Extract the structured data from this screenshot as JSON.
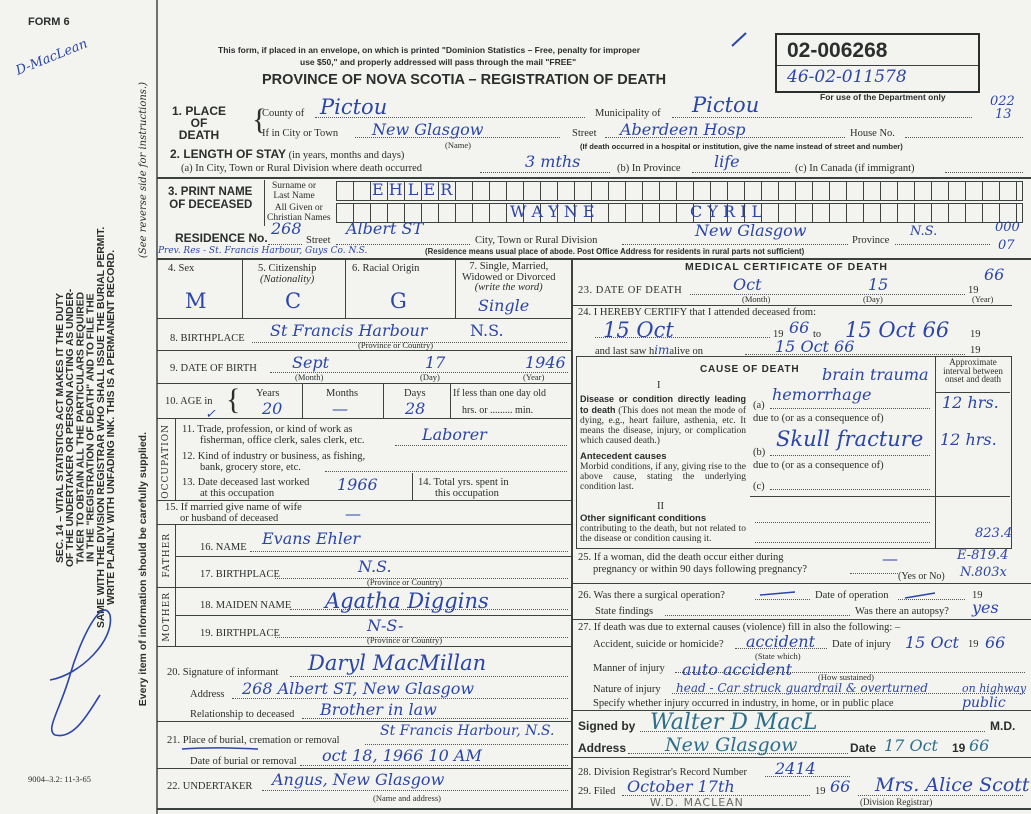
{
  "margin": {
    "form_number": "FORM 6",
    "handwritten_note": "D-MacLean",
    "legal_notice_lines": [
      "SEC. 14 – VITAL STATISTICS ACT MAKES IT THE DUTY",
      "OF THE UNDERTAKER OR PERSON ACTING AS UNDER-",
      "TAKER TO OBTAIN ALL THE PARTICULARS REQUIRED",
      "IN THE \"REGISTRATION OF DEATH\" AND TO FILE THE",
      "SAME WITH THE DIVISION REGISTRAR WHO SHALL ISSUE THE BURIAL PERMIT.",
      "WRITE PLAINLY WITH UNFADING INK. THIS IS A PERMANENT RECORD."
    ],
    "every_item": "Every item of information should be carefully supplied.",
    "see_reverse": "(See reverse side for instructions.)",
    "print_code": "9004–3.2: 11-3-65"
  },
  "header": {
    "notice_line1": "This form, if placed in an envelope, on which is printed \"Dominion Statistics – Free, penalty for improper",
    "notice_line2": "use $50,\" and properly addressed will pass through the mail \"FREE\"",
    "title": "PROVINCE OF NOVA SCOTIA – REGISTRATION OF DEATH"
  },
  "registration": {
    "number": "02-006268",
    "handwritten_number": "46-02-011578",
    "dept_note": "For use of the Department only",
    "code_top": "022",
    "code_bottom": "13"
  },
  "place_of_death": {
    "label_1": "1. PLACE",
    "label_2": "OF",
    "label_3": "DEATH",
    "county_label": "County of",
    "county": "Pictou",
    "municipality_label": "Municipality of",
    "municipality": "Pictou",
    "city_label": "If in City or Town",
    "city": "New Glasgow",
    "name_note": "(Name)",
    "street_label": "Street",
    "street": "Aberdeen Hosp",
    "house_label": "House No.",
    "hospital_note": "(If death occurred in a hospital or institution, give the name instead of street and number)"
  },
  "length_of_stay": {
    "label": "2. LENGTH OF STAY",
    "label_note": "(in years, months and days)",
    "a_label": "(a) In City, Town or Rural Division where death occurred",
    "a_value": "3 mths",
    "b_label": "(b) In Province",
    "b_value": "life",
    "c_label": "(c) In Canada (if immigrant)"
  },
  "name": {
    "label_1": "3. PRINT NAME",
    "label_2": "OF DECEASED",
    "surname_label_1": "Surname or",
    "surname_label_2": "Last Name",
    "surname": "E H L E R",
    "given_label_1": "All Given or",
    "given_label_2": "Christian Names",
    "given_1": "W A Y N E",
    "given_2": "C Y R I L"
  },
  "residence": {
    "label": "RESIDENCE No.",
    "number": "268",
    "street_label": "Street",
    "street": "Albert ST",
    "city_label": "City, Town or Rural Division",
    "city": "New Glasgow",
    "province_label": "Province",
    "province": "N.S.",
    "code_top": "000",
    "code_bottom": "07",
    "previous": "Prev. Res - St. Francis Harbour, Guys Co. N.S.",
    "note": "(Residence means usual place of abode. Post Office Address for residents in rural parts not sufficient)"
  },
  "personal": {
    "sex_label": "4. Sex",
    "sex": "M",
    "citizenship_label": "5. Citizenship",
    "citizenship_note": "(Nationality)",
    "citizenship": "C",
    "racial_label": "6. Racial Origin",
    "racial": "G",
    "marital_label_1": "7. Single, Married,",
    "marital_label_2": "Widowed or Divorced",
    "marital_label_3": "(write the word)",
    "marital": "Single",
    "birthplace_label": "8. BIRTHPLACE",
    "birthplace": "St Francis Harbour",
    "birthplace_prov": "N.S.",
    "prov_note": "(Province or Country)",
    "dob_label": "9. DATE OF BIRTH",
    "dob_month": "Sept",
    "dob_day": "17",
    "dob_year": "1946",
    "month_note": "(Month)",
    "day_note": "(Day)",
    "year_note": "(Year)",
    "age_label": "10. AGE in",
    "age_check": "✓",
    "years_label": "Years",
    "years": "20",
    "months_label": "Months",
    "months": "—",
    "days_label": "Days",
    "days": "28",
    "less_label": "If less than one day old",
    "hrs_label": "hrs. or ......... min."
  },
  "occupation": {
    "side_label": "OCCUPATION",
    "q11_1": "11. Trade, profession, or kind of work as",
    "q11_2": "fisherman, office clerk, sales clerk, etc.",
    "trade": "Laborer",
    "q12_1": "12. Kind of industry or business, as fishing,",
    "q12_2": "bank, grocery store, etc.",
    "q13_1": "13. Date deceased last worked",
    "q13_2": "at this occupation",
    "last_worked": "1966",
    "q14_1": "14. Total yrs. spent in",
    "q14_2": "this occupation"
  },
  "spouse": {
    "q15_1": "15. If married give name of wife",
    "q15_2": "or husband of deceased",
    "value": "—"
  },
  "father": {
    "side_label": "FATHER",
    "name_label": "16. NAME",
    "name": "Evans Ehler",
    "birthplace_label": "17. BIRTHPLACE",
    "birthplace": "N.S.",
    "prov_note": "(Province or Country)"
  },
  "mother": {
    "side_label": "MOTHER",
    "name_label": "18. MAIDEN NAME",
    "name": "Agatha Diggins",
    "birthplace_label": "19. BIRTHPLACE",
    "birthplace": "N-S-",
    "prov_note": "(Province or Country)"
  },
  "informant": {
    "signature_label": "20. Signature of informant",
    "signature": "Daryl MacMillan",
    "address_label": "Address",
    "address": "268 Albert ST, New Glasgow",
    "relationship_label": "Relationship to deceased",
    "relationship": "Brother in law"
  },
  "burial": {
    "place_label": "21. Place of burial, cremation or removal",
    "place": "St Francis Harbour, N.S.",
    "date_label": "Date of burial or removal",
    "date": "oct 18, 1966 10 AM"
  },
  "undertaker": {
    "label": "22. UNDERTAKER",
    "value": "Angus, New Glasgow",
    "note": "(Name and address)"
  },
  "medical": {
    "title": "MEDICAL CERTIFICATE OF DEATH",
    "q23_label": "23. DATE OF DEATH",
    "death_month": "Oct",
    "death_day": "15",
    "century": "19",
    "death_year": "66",
    "month_note": "(Month)",
    "day_note": "(Day)",
    "year_note": "(Year)",
    "q24_label": "24. I HEREBY CERTIFY that I attended deceased from:",
    "attended_from": "15 Oct",
    "from_year": "66",
    "to_label": "to",
    "attended_to": "15 Oct 66",
    "last_saw_label_1": "and last saw h",
    "last_saw_pronoun": "im",
    "last_saw_label_2": "alive on",
    "last_saw": "15 Oct 66"
  },
  "cause": {
    "title": "CAUSE OF DEATH",
    "part1": "I",
    "part2": "II",
    "interval_header": "Approximate interval between onset and death",
    "direct_title": "Disease or condition directly leading to death",
    "direct_text": "(This does not mean the mode of dying, e.g., heart failure, asthenia, etc. It means the disease, injury, or complication which caused death.)",
    "antecedent_title": "Antecedent causes",
    "antecedent_text": "Morbid conditions, if any, giving rise to the above cause, stating the underlying condition last.",
    "other_title": "Other significant conditions",
    "other_text": "contributing to the death, but not related to the disease or condition causing it.",
    "a_label": "(a)",
    "b_label": "(b)",
    "c_label": "(c)",
    "due_to": "due to (or as a consequence of)",
    "a_line1": "brain trauma",
    "a_line2": "hemorrhage",
    "a_interval": "12 hrs.",
    "b_value": "Skull fracture",
    "b_interval": "12 hrs.",
    "code": "823.4"
  },
  "q25": {
    "label_1": "25. If a woman, did the death occur either during",
    "label_2": "pregnancy or within 90 days following pregnancy?",
    "value": "—",
    "yes_no": "(Yes or No)",
    "code_1": "E-819.4",
    "code_2": "N.803x"
  },
  "q26": {
    "label": "26. Was there a surgical operation?",
    "date_label": "Date of operation",
    "century": "19",
    "findings_label": "State findings",
    "autopsy_label": "Was there an autopsy?",
    "autopsy": "yes"
  },
  "q27": {
    "label": "27. If death was due to external causes (violence) fill in also the following: –",
    "accident_label": "Accident, suicide or homicide?",
    "accident": "accident",
    "state_which": "(State which)",
    "date_label": "Date of injury",
    "date": "15 Oct",
    "century": "19",
    "year": "66",
    "manner_label": "Manner of injury",
    "manner": "auto accident",
    "how": "(How sustained)",
    "nature_label": "Nature of injury",
    "nature": "head - Car struck guardrail & overturned",
    "nature_2": "on highway",
    "place_label": "Specify whether injury occurred in industry, in home, or in public place",
    "place": "public"
  },
  "signature": {
    "signed_label": "Signed by",
    "signed": "Walter D MacL",
    "md": "M.D.",
    "address_label": "Address",
    "address": "New Glasgow",
    "date_label": "Date",
    "date": "17 Oct",
    "century": "19",
    "year": "66"
  },
  "registrar": {
    "q28_label": "28. Division Registrar's Record Number",
    "record_number": "2414",
    "q29_label": "29. Filed",
    "filed": "October 17th",
    "century": "19",
    "year": "66",
    "registrar": "Mrs. Alice Scott",
    "registrar_note": "(Division Registrar)",
    "pencil_note": "W.D. MACLEAN"
  }
}
